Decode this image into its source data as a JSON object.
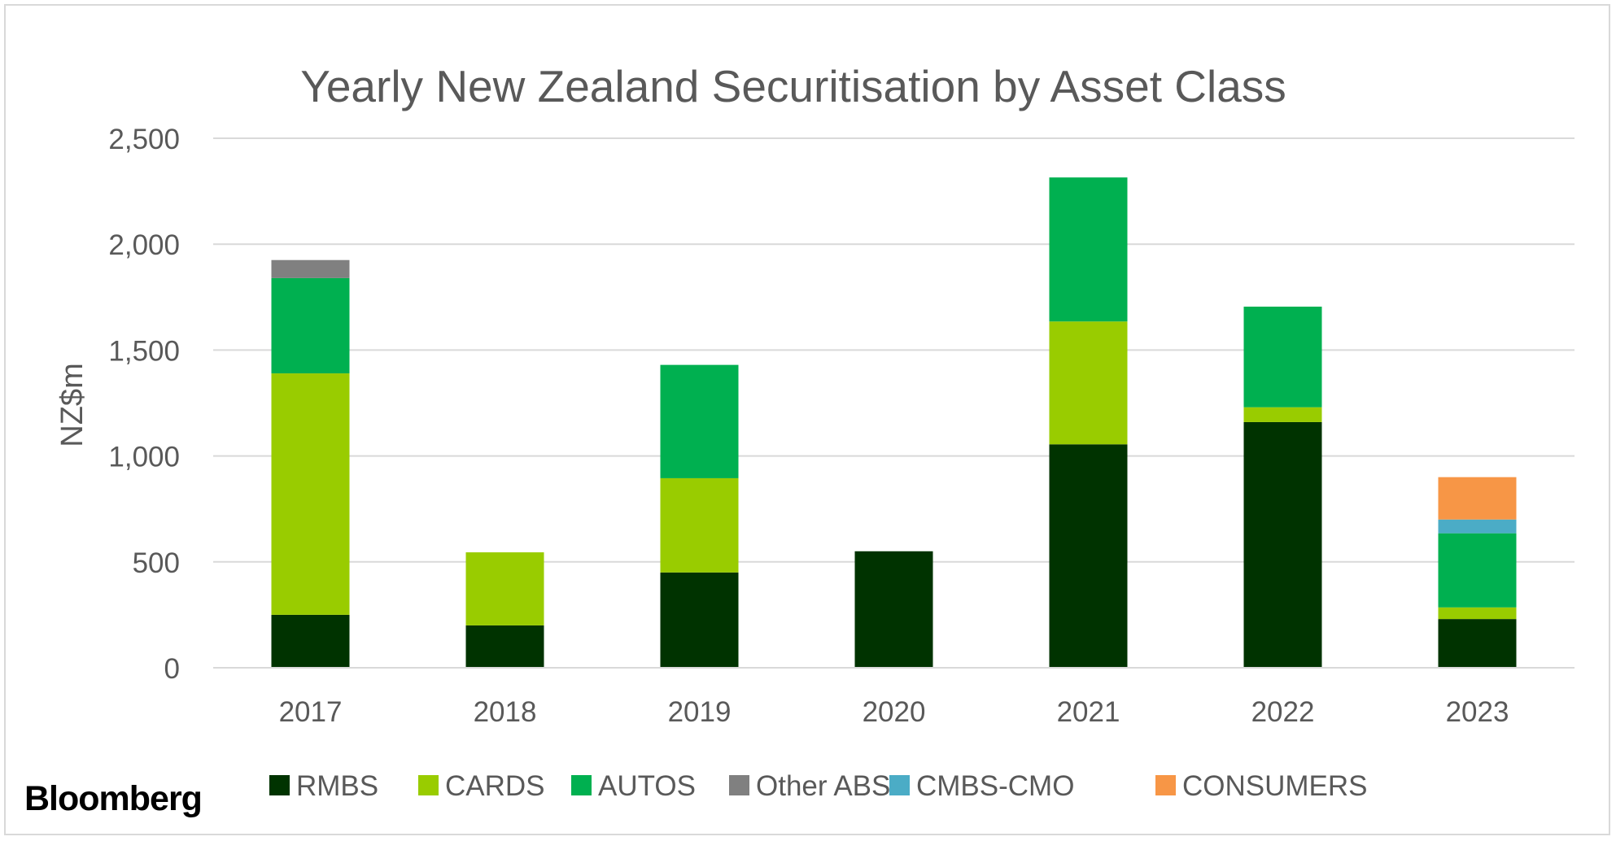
{
  "chart_data": {
    "type": "bar",
    "stacked": true,
    "title": "Yearly New Zealand Securitisation by Asset Class",
    "xlabel": "",
    "ylabel": "NZ$m",
    "ylim": [
      0,
      2500
    ],
    "yticks": [
      0,
      500,
      1000,
      1500,
      2000,
      2500
    ],
    "ytick_labels": [
      "0",
      "500",
      "1,000",
      "1,500",
      "2,000",
      "2,500"
    ],
    "grid": true,
    "legend_position": "bottom",
    "categories": [
      "2017",
      "2018",
      "2019",
      "2020",
      "2021",
      "2022",
      "2023"
    ],
    "series": [
      {
        "name": "RMBS",
        "color": "#003300",
        "values": [
          250,
          200,
          450,
          550,
          1055,
          1160,
          230
        ]
      },
      {
        "name": "CARDS",
        "color": "#99cc00",
        "values": [
          1140,
          345,
          445,
          0,
          580,
          70,
          55
        ]
      },
      {
        "name": "AUTOS",
        "color": "#00b050",
        "values": [
          450,
          0,
          535,
          0,
          680,
          475,
          350
        ]
      },
      {
        "name": "Other ABS",
        "color": "#808080",
        "values": [
          85,
          0,
          0,
          0,
          0,
          0,
          0
        ]
      },
      {
        "name": "CMBS-CMO",
        "color": "#4bacc6",
        "values": [
          0,
          0,
          0,
          0,
          0,
          0,
          65
        ]
      },
      {
        "name": "CONSUMERS",
        "color": "#f79646",
        "values": [
          0,
          0,
          0,
          0,
          0,
          0,
          200
        ]
      }
    ]
  },
  "brand": {
    "logo_text": "Bloomberg"
  }
}
